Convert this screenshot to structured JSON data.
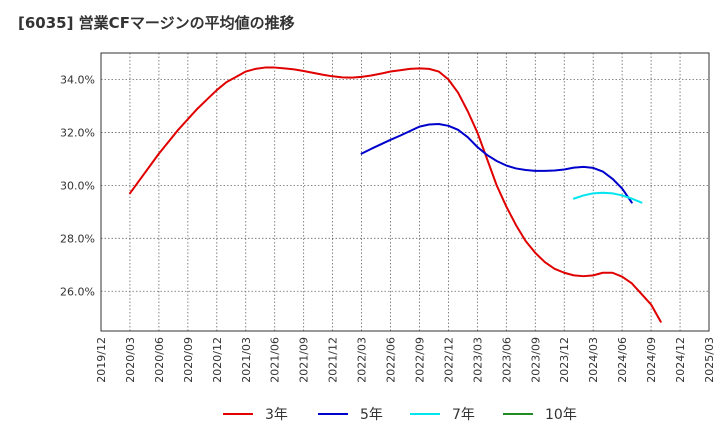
{
  "title": "[6035]  営業CFマージンの平均値の推移",
  "chart_data": {
    "type": "line",
    "title": "[6035]  営業CFマージンの平均値の推移",
    "xlabel": "",
    "ylabel": "",
    "x_ticks": [
      "2019/12",
      "2020/03",
      "2020/06",
      "2020/09",
      "2020/12",
      "2021/03",
      "2021/06",
      "2021/09",
      "2021/12",
      "2022/03",
      "2022/06",
      "2022/09",
      "2022/12",
      "2023/03",
      "2023/06",
      "2023/09",
      "2023/12",
      "2024/03",
      "2024/06",
      "2024/09",
      "2024/12",
      "2025/03"
    ],
    "y_ticks": [
      26.0,
      28.0,
      30.0,
      32.0,
      34.0
    ],
    "y_tick_labels": [
      "26.0%",
      "28.0%",
      "30.0%",
      "32.0%",
      "34.0%"
    ],
    "ylim": [
      24.5,
      35.0
    ],
    "grid": true,
    "legend_position": "bottom",
    "series": [
      {
        "name": "3年",
        "color": "#e00000",
        "points": [
          [
            "2020/03",
            29.7
          ],
          [
            "2020/04",
            30.2
          ],
          [
            "2020/05",
            30.7
          ],
          [
            "2020/06",
            31.2
          ],
          [
            "2020/07",
            31.65
          ],
          [
            "2020/08",
            32.1
          ],
          [
            "2020/09",
            32.5
          ],
          [
            "2020/10",
            32.9
          ],
          [
            "2020/11",
            33.25
          ],
          [
            "2020/12",
            33.6
          ],
          [
            "2021/01",
            33.9
          ],
          [
            "2021/02",
            34.1
          ],
          [
            "2021/03",
            34.3
          ],
          [
            "2021/04",
            34.4
          ],
          [
            "2021/05",
            34.45
          ],
          [
            "2021/06",
            34.45
          ],
          [
            "2021/07",
            34.42
          ],
          [
            "2021/08",
            34.38
          ],
          [
            "2021/09",
            34.32
          ],
          [
            "2021/10",
            34.25
          ],
          [
            "2021/11",
            34.18
          ],
          [
            "2021/12",
            34.12
          ],
          [
            "2022/01",
            34.08
          ],
          [
            "2022/02",
            34.07
          ],
          [
            "2022/03",
            34.1
          ],
          [
            "2022/04",
            34.15
          ],
          [
            "2022/05",
            34.22
          ],
          [
            "2022/06",
            34.3
          ],
          [
            "2022/07",
            34.35
          ],
          [
            "2022/08",
            34.4
          ],
          [
            "2022/09",
            34.42
          ],
          [
            "2022/10",
            34.4
          ],
          [
            "2022/11",
            34.3
          ],
          [
            "2022/12",
            34.0
          ],
          [
            "2023/01",
            33.5
          ],
          [
            "2023/02",
            32.8
          ],
          [
            "2023/03",
            32.0
          ],
          [
            "2023/04",
            31.0
          ],
          [
            "2023/05",
            30.0
          ],
          [
            "2023/06",
            29.2
          ],
          [
            "2023/07",
            28.5
          ],
          [
            "2023/08",
            27.9
          ],
          [
            "2023/09",
            27.45
          ],
          [
            "2023/10",
            27.1
          ],
          [
            "2023/11",
            26.85
          ],
          [
            "2023/12",
            26.7
          ],
          [
            "2024/01",
            26.6
          ],
          [
            "2024/02",
            26.57
          ],
          [
            "2024/03",
            26.6
          ],
          [
            "2024/04",
            26.7
          ],
          [
            "2024/05",
            26.7
          ],
          [
            "2024/06",
            26.55
          ],
          [
            "2024/07",
            26.3
          ],
          [
            "2024/08",
            25.9
          ],
          [
            "2024/09",
            25.5
          ],
          [
            "2024/10",
            24.85
          ]
        ]
      },
      {
        "name": "5年",
        "color": "#0000cc",
        "points": [
          [
            "2022/03",
            31.2
          ],
          [
            "2022/04",
            31.38
          ],
          [
            "2022/05",
            31.55
          ],
          [
            "2022/06",
            31.72
          ],
          [
            "2022/07",
            31.88
          ],
          [
            "2022/08",
            32.05
          ],
          [
            "2022/09",
            32.22
          ],
          [
            "2022/10",
            32.3
          ],
          [
            "2022/11",
            32.32
          ],
          [
            "2022/12",
            32.25
          ],
          [
            "2023/01",
            32.1
          ],
          [
            "2023/02",
            31.82
          ],
          [
            "2023/03",
            31.45
          ],
          [
            "2023/04",
            31.15
          ],
          [
            "2023/05",
            30.92
          ],
          [
            "2023/06",
            30.75
          ],
          [
            "2023/07",
            30.64
          ],
          [
            "2023/08",
            30.58
          ],
          [
            "2023/09",
            30.55
          ],
          [
            "2023/10",
            30.55
          ],
          [
            "2023/11",
            30.56
          ],
          [
            "2023/12",
            30.6
          ],
          [
            "2024/01",
            30.67
          ],
          [
            "2024/02",
            30.7
          ],
          [
            "2024/03",
            30.66
          ],
          [
            "2024/04",
            30.52
          ],
          [
            "2024/05",
            30.25
          ],
          [
            "2024/06",
            29.88
          ],
          [
            "2024/07",
            29.35
          ]
        ]
      },
      {
        "name": "7年",
        "color": "#00e5ee",
        "points": [
          [
            "2024/01",
            29.5
          ],
          [
            "2024/02",
            29.62
          ],
          [
            "2024/03",
            29.7
          ],
          [
            "2024/04",
            29.72
          ],
          [
            "2024/05",
            29.7
          ],
          [
            "2024/06",
            29.62
          ],
          [
            "2024/07",
            29.5
          ],
          [
            "2024/08",
            29.35
          ]
        ]
      },
      {
        "name": "10年",
        "color": "#228b22",
        "points": []
      }
    ]
  }
}
